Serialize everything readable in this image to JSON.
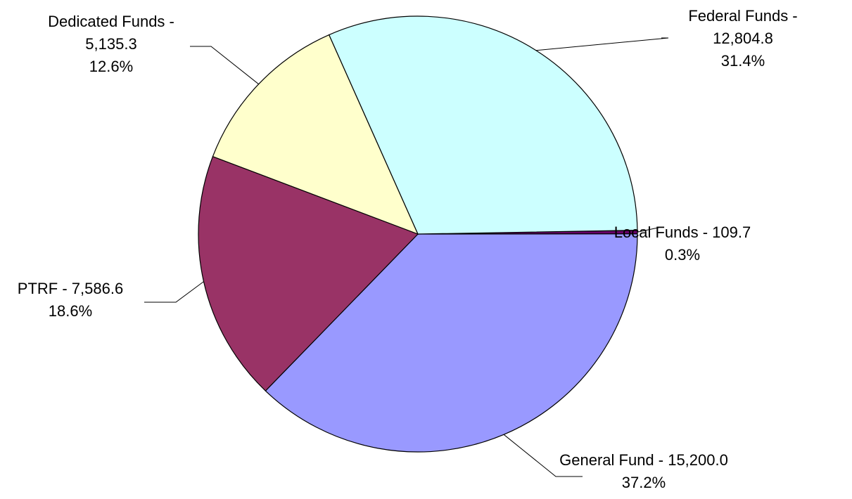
{
  "chart_data": {
    "type": "pie",
    "title": "",
    "legend": "none",
    "slices": [
      {
        "name": "Local Funds",
        "value": 109.7,
        "percent_label": "0.3%",
        "label_lines": [
          "Local Funds - 109.7",
          "0.3%"
        ],
        "color": "#660066"
      },
      {
        "name": "General Fund",
        "value": 15200.0,
        "percent_label": "37.2%",
        "label_lines": [
          "General Fund - 15,200.0",
          "37.2%"
        ],
        "color": "#9999ff"
      },
      {
        "name": "PTRF",
        "value": 7586.6,
        "percent_label": "18.6%",
        "label_lines": [
          "PTRF - 7,586.6",
          "18.6%"
        ],
        "color": "#993366"
      },
      {
        "name": "Dedicated Funds",
        "value": 5135.3,
        "percent_label": "12.6%",
        "label_lines": [
          "Dedicated Funds -",
          "5,135.3",
          "12.6%"
        ],
        "color": "#ffffcc"
      },
      {
        "name": "Federal Funds",
        "value": 12804.8,
        "percent_label": "31.4%",
        "label_lines": [
          "Federal Funds -",
          "12,804.8",
          "31.4%"
        ],
        "color": "#ccffff"
      }
    ]
  }
}
